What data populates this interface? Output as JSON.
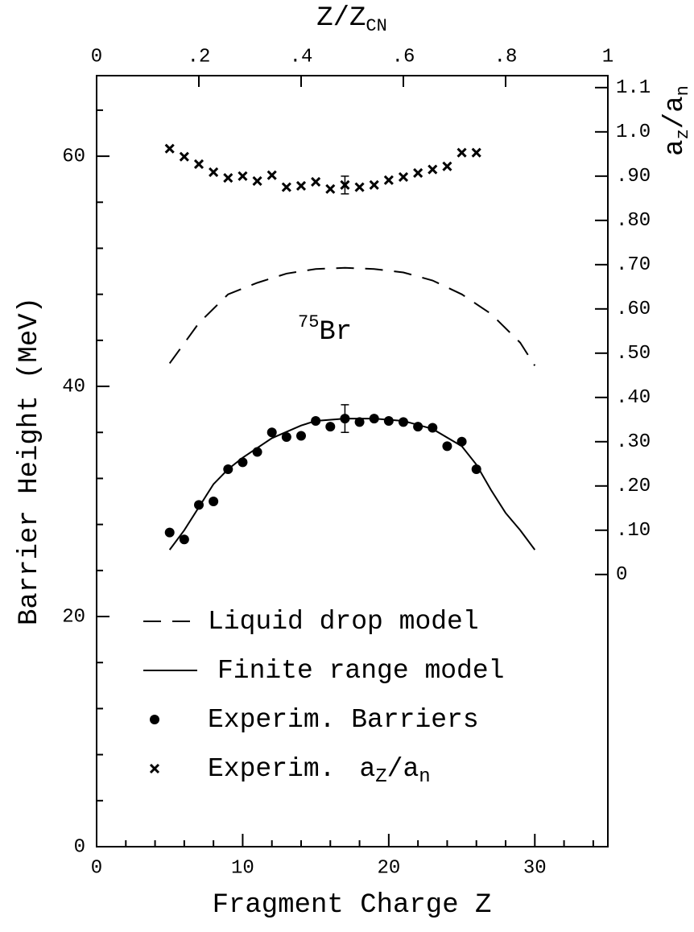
{
  "chart_data": {
    "type": "line",
    "xlabel": "Fragment Charge Z",
    "ylabel": "Barrier Height (MeV)",
    "x2label": [
      "Z/Z",
      "CN"
    ],
    "y2label": [
      "a",
      "z",
      "/",
      "a",
      "n"
    ],
    "annotation": [
      "75",
      "Br"
    ],
    "xlim": [
      0,
      35
    ],
    "xticks": [
      0,
      10,
      20,
      30
    ],
    "xminorticks": [
      2,
      4,
      6,
      8,
      12,
      14,
      16,
      18,
      22,
      24,
      26,
      28,
      32,
      34
    ],
    "ylim": [
      0,
      67
    ],
    "yticks": [
      0,
      20,
      40,
      60
    ],
    "yminorticks": [
      4,
      8,
      12,
      16,
      24,
      28,
      32,
      36,
      44,
      48,
      52,
      56,
      64
    ],
    "x2lim": [
      0,
      1
    ],
    "x2ticks": [
      0,
      {
        "value": 0.2,
        "label": ".2"
      },
      {
        "value": 0.4,
        "label": ".4"
      },
      {
        "value": 0.6,
        "label": ".6"
      },
      {
        "value": 0.8,
        "label": ".8"
      },
      1
    ],
    "y2lim": [
      -0.615,
      1.127
    ],
    "y2ticks": [
      0,
      {
        "value": 0.1,
        "label": ".10"
      },
      {
        "value": 0.2,
        "label": ".20"
      },
      {
        "value": 0.3,
        "label": ".30"
      },
      {
        "value": 0.4,
        "label": ".40"
      },
      {
        "value": 0.5,
        "label": ".50"
      },
      {
        "value": 0.6,
        "label": ".60"
      },
      {
        "value": 0.7,
        "label": ".70"
      },
      {
        "value": 0.8,
        "label": ".80"
      },
      {
        "value": 0.9,
        "label": ".90"
      },
      {
        "value": 1.0,
        "label": "1.0"
      },
      1.1
    ],
    "series": [
      {
        "name": "Liquid drop model",
        "style": "dashed",
        "color": "#000",
        "x": [
          5,
          7,
          9,
          11,
          13,
          15,
          17,
          19,
          21,
          23,
          25,
          27,
          29,
          30
        ],
        "values": [
          42,
          45.5,
          48,
          49,
          49.8,
          50.2,
          50.3,
          50.2,
          49.9,
          49.2,
          48,
          46.3,
          43.8,
          41.8
        ]
      },
      {
        "name": "Finite range model",
        "style": "solid",
        "color": "#000",
        "x": [
          5,
          6,
          7,
          8,
          9,
          10,
          12,
          14,
          15,
          17,
          19,
          21,
          23,
          25,
          26,
          27,
          28,
          29,
          30
        ],
        "values": [
          25.8,
          27.5,
          29.5,
          31.5,
          32.8,
          33.8,
          35.5,
          36.6,
          37.0,
          37.2,
          37.2,
          37.0,
          36.3,
          34.8,
          33.2,
          31.0,
          29.0,
          27.5,
          25.8
        ]
      },
      {
        "name": "Experim.  Barriers",
        "style": "dot",
        "color": "#000",
        "x": [
          5,
          6,
          7,
          8,
          9,
          10,
          11,
          12,
          13,
          14,
          15,
          16,
          17,
          18,
          19,
          20,
          21,
          22,
          23,
          24,
          25,
          26
        ],
        "values": [
          27.3,
          26.7,
          29.7,
          30.0,
          32.8,
          33.4,
          34.3,
          36.0,
          35.6,
          35.7,
          37.0,
          36.5,
          37.2,
          36.9,
          37.2,
          37.0,
          36.9,
          36.5,
          36.4,
          34.8,
          35.2,
          32.8
        ],
        "errors": [
          null,
          null,
          null,
          null,
          null,
          null,
          null,
          null,
          null,
          null,
          null,
          null,
          1.2,
          null,
          null,
          null,
          null,
          null,
          null,
          null,
          null,
          null
        ]
      },
      {
        "name": "Experim.",
        "name_math": [
          "a",
          "Z",
          "/",
          "a",
          "n"
        ],
        "style": "cross",
        "color": "#000",
        "axis": "y2",
        "x": [
          5,
          6,
          7,
          8,
          9,
          10,
          11,
          12,
          13,
          14,
          15,
          16,
          17,
          18,
          19,
          20,
          21,
          22,
          23,
          24,
          25,
          26
        ],
        "values": [
          0.962,
          0.944,
          0.927,
          0.909,
          0.896,
          0.9,
          0.889,
          0.902,
          0.875,
          0.878,
          0.887,
          0.871,
          0.88,
          0.875,
          0.88,
          0.891,
          0.898,
          0.907,
          0.915,
          0.922,
          0.953,
          0.953
        ],
        "errors": [
          null,
          null,
          null,
          null,
          null,
          null,
          null,
          null,
          null,
          null,
          null,
          null,
          0.02,
          null,
          null,
          null,
          null,
          null,
          null,
          null,
          null,
          null
        ]
      }
    ]
  }
}
